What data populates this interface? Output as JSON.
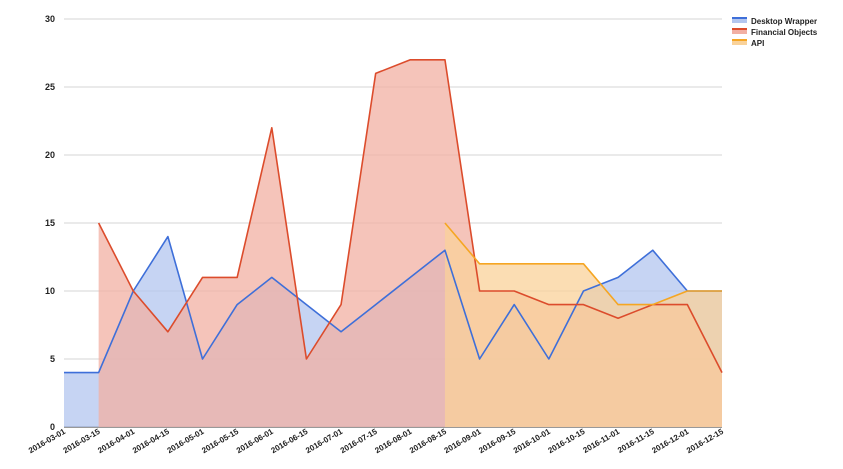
{
  "chart_data": {
    "type": "area",
    "title": "",
    "xlabel": "",
    "ylabel": "",
    "ylim": [
      0,
      30
    ],
    "yticks": [
      0,
      5,
      10,
      15,
      20,
      25,
      30
    ],
    "grid": true,
    "legend": "top-right",
    "x": [
      "2016-03-01",
      "2016-03-15",
      "2016-04-01",
      "2016-04-15",
      "2016-05-01",
      "2016-05-15",
      "2016-06-01",
      "2016-06-15",
      "2016-07-01",
      "2016-07-15",
      "2016-08-01",
      "2016-08-15",
      "2016-09-01",
      "2016-09-15",
      "2016-10-01",
      "2016-10-15",
      "2016-11-01",
      "2016-11-15",
      "2016-12-01",
      "2016-12-15"
    ],
    "series": [
      {
        "name": "Desktop Wrapper",
        "color": "#3e6fd9",
        "fill": "#b3c6ef",
        "values": [
          4,
          4,
          10,
          14,
          5,
          9,
          11,
          9,
          7,
          9,
          11,
          13,
          5,
          9,
          5,
          10,
          11,
          13,
          10,
          10
        ]
      },
      {
        "name": "Financial Objects",
        "color": "#dc4c2c",
        "fill": "#f2b0a3",
        "values": [
          null,
          15,
          10,
          7,
          11,
          11,
          22,
          5,
          9,
          26,
          27,
          27,
          10,
          10,
          9,
          9,
          8,
          9,
          9,
          4
        ]
      },
      {
        "name": "API",
        "color": "#f5a623",
        "fill": "#f9d29a",
        "values": [
          null,
          null,
          null,
          null,
          null,
          null,
          null,
          null,
          null,
          null,
          null,
          15,
          12,
          12,
          12,
          12,
          9,
          9,
          10,
          10
        ]
      }
    ]
  }
}
